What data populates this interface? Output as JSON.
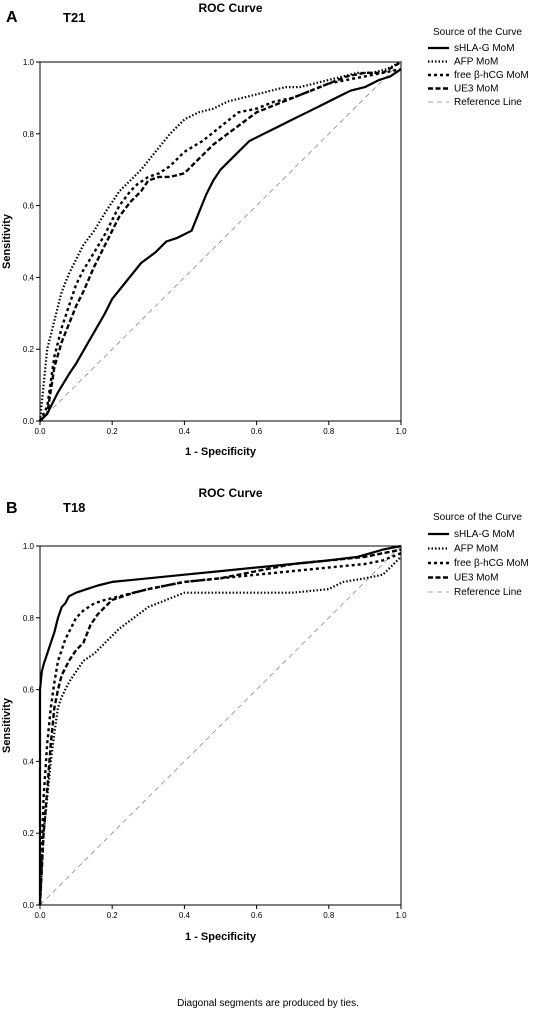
{
  "footnote": "Diagonal segments are produced by ties.",
  "chart_data": [
    {
      "type": "line",
      "panel": "A",
      "subtitle": "T21",
      "title": "ROC Curve",
      "xlabel": "1 - Specificity",
      "ylabel": "Sensitivity",
      "xlim": [
        0,
        1
      ],
      "ylim": [
        0,
        1
      ],
      "xticks": [
        "0.0",
        "0.2",
        "0.4",
        "0.6",
        "0.8",
        "1.0"
      ],
      "yticks": [
        "0.0",
        "0.2",
        "0.4",
        "0.6",
        "0.8",
        "1.0"
      ],
      "legend_title": "Source of the Curve",
      "legend_position": "top-right",
      "series": [
        {
          "name": "sHLA-G MoM",
          "style": "solid",
          "x": [
            0,
            0.02,
            0.05,
            0.08,
            0.1,
            0.14,
            0.18,
            0.2,
            0.24,
            0.28,
            0.32,
            0.35,
            0.38,
            0.42,
            0.44,
            0.46,
            0.48,
            0.5,
            0.54,
            0.58,
            0.62,
            0.66,
            0.7,
            0.74,
            0.78,
            0.82,
            0.86,
            0.9,
            0.94,
            0.97,
            1.0
          ],
          "y": [
            0,
            0.02,
            0.08,
            0.13,
            0.16,
            0.23,
            0.3,
            0.34,
            0.39,
            0.44,
            0.47,
            0.5,
            0.51,
            0.53,
            0.58,
            0.63,
            0.67,
            0.7,
            0.74,
            0.78,
            0.8,
            0.82,
            0.84,
            0.86,
            0.88,
            0.9,
            0.92,
            0.93,
            0.95,
            0.96,
            0.98
          ]
        },
        {
          "name": "AFP MoM",
          "style": "dotted",
          "x": [
            0,
            0.01,
            0.02,
            0.04,
            0.06,
            0.08,
            0.1,
            0.12,
            0.15,
            0.18,
            0.2,
            0.22,
            0.25,
            0.28,
            0.32,
            0.36,
            0.4,
            0.44,
            0.48,
            0.52,
            0.56,
            0.6,
            0.64,
            0.68,
            0.72,
            0.76,
            0.8,
            0.84,
            0.88,
            0.92,
            0.96,
            1.0
          ],
          "y": [
            0,
            0.1,
            0.2,
            0.28,
            0.36,
            0.41,
            0.45,
            0.49,
            0.53,
            0.58,
            0.61,
            0.64,
            0.67,
            0.7,
            0.75,
            0.8,
            0.84,
            0.86,
            0.87,
            0.89,
            0.9,
            0.91,
            0.92,
            0.93,
            0.93,
            0.94,
            0.95,
            0.96,
            0.97,
            0.97,
            0.98,
            1.0
          ]
        },
        {
          "name": "free β-hCG MoM",
          "style": "dashdot",
          "x": [
            0,
            0.02,
            0.04,
            0.06,
            0.08,
            0.1,
            0.12,
            0.15,
            0.18,
            0.2,
            0.22,
            0.25,
            0.27,
            0.3,
            0.33,
            0.36,
            0.4,
            0.45,
            0.5,
            0.55,
            0.6,
            0.65,
            0.7,
            0.75,
            0.8,
            0.85,
            0.9,
            0.95,
            1.0
          ],
          "y": [
            0,
            0.04,
            0.18,
            0.26,
            0.32,
            0.38,
            0.42,
            0.47,
            0.52,
            0.56,
            0.6,
            0.64,
            0.66,
            0.68,
            0.69,
            0.71,
            0.75,
            0.78,
            0.82,
            0.86,
            0.87,
            0.89,
            0.9,
            0.92,
            0.94,
            0.95,
            0.96,
            0.97,
            0.98
          ]
        },
        {
          "name": "UE3 MoM",
          "style": "dashed",
          "x": [
            0,
            0.02,
            0.04,
            0.06,
            0.08,
            0.1,
            0.12,
            0.15,
            0.18,
            0.2,
            0.22,
            0.25,
            0.28,
            0.3,
            0.33,
            0.36,
            0.4,
            0.44,
            0.48,
            0.52,
            0.56,
            0.6,
            0.65,
            0.7,
            0.75,
            0.8,
            0.85,
            0.9,
            0.95,
            1.0
          ],
          "y": [
            0,
            0.02,
            0.15,
            0.22,
            0.27,
            0.32,
            0.36,
            0.43,
            0.49,
            0.53,
            0.57,
            0.61,
            0.64,
            0.67,
            0.68,
            0.68,
            0.69,
            0.73,
            0.77,
            0.8,
            0.83,
            0.86,
            0.88,
            0.9,
            0.92,
            0.94,
            0.96,
            0.97,
            0.97,
            1.0
          ]
        },
        {
          "name": "Reference Line",
          "style": "reference",
          "x": [
            0,
            1
          ],
          "y": [
            0,
            1
          ]
        }
      ]
    },
    {
      "type": "line",
      "panel": "B",
      "subtitle": "T18",
      "title": "ROC Curve",
      "xlabel": "1 - Specificity",
      "ylabel": "Sensitivity",
      "xlim": [
        0,
        1
      ],
      "ylim": [
        0,
        1
      ],
      "xticks": [
        "0.0",
        "0.2",
        "0.4",
        "0.6",
        "0.8",
        "1.0"
      ],
      "yticks": [
        "0.0",
        "0.2",
        "0.4",
        "0.6",
        "0.8",
        "1.0"
      ],
      "legend_title": "Source of the Curve",
      "legend_position": "top-right",
      "series": [
        {
          "name": "sHLA-G MoM",
          "style": "solid",
          "x": [
            0,
            0,
            0.005,
            0.01,
            0.02,
            0.03,
            0.04,
            0.05,
            0.06,
            0.07,
            0.08,
            0.1,
            0.13,
            0.16,
            0.2,
            0.3,
            0.4,
            0.5,
            0.6,
            0.7,
            0.8,
            0.88,
            0.95,
            1.0
          ],
          "y": [
            0,
            0.6,
            0.65,
            0.67,
            0.7,
            0.73,
            0.76,
            0.8,
            0.83,
            0.84,
            0.86,
            0.87,
            0.88,
            0.89,
            0.9,
            0.91,
            0.92,
            0.93,
            0.94,
            0.95,
            0.96,
            0.97,
            0.99,
            1.0
          ]
        },
        {
          "name": "AFP MoM",
          "style": "dotted",
          "x": [
            0,
            0.01,
            0.02,
            0.03,
            0.04,
            0.05,
            0.06,
            0.08,
            0.1,
            0.12,
            0.15,
            0.18,
            0.22,
            0.26,
            0.3,
            0.35,
            0.4,
            0.5,
            0.6,
            0.7,
            0.8,
            0.84,
            0.9,
            0.95,
            1.0
          ],
          "y": [
            0,
            0.2,
            0.3,
            0.4,
            0.48,
            0.55,
            0.58,
            0.62,
            0.65,
            0.68,
            0.7,
            0.73,
            0.77,
            0.8,
            0.83,
            0.85,
            0.87,
            0.87,
            0.87,
            0.87,
            0.88,
            0.9,
            0.91,
            0.92,
            0.97
          ]
        },
        {
          "name": "free β-hCG MoM",
          "style": "dashdot",
          "x": [
            0,
            0.01,
            0.02,
            0.03,
            0.04,
            0.05,
            0.06,
            0.07,
            0.08,
            0.1,
            0.12,
            0.15,
            0.18,
            0.22,
            0.26,
            0.3,
            0.35,
            0.4,
            0.5,
            0.6,
            0.7,
            0.8,
            0.9,
            0.95,
            1.0
          ],
          "y": [
            0,
            0.3,
            0.45,
            0.55,
            0.62,
            0.68,
            0.71,
            0.74,
            0.76,
            0.8,
            0.82,
            0.84,
            0.85,
            0.86,
            0.87,
            0.88,
            0.89,
            0.9,
            0.91,
            0.92,
            0.93,
            0.94,
            0.95,
            0.96,
            0.98
          ]
        },
        {
          "name": "UE3 MoM",
          "style": "dashed",
          "x": [
            0,
            0.01,
            0.02,
            0.03,
            0.04,
            0.05,
            0.06,
            0.08,
            0.1,
            0.12,
            0.14,
            0.16,
            0.18,
            0.2,
            0.23,
            0.26,
            0.3,
            0.35,
            0.4,
            0.5,
            0.6,
            0.7,
            0.8,
            0.9,
            0.95,
            1.0
          ],
          "y": [
            0,
            0.2,
            0.32,
            0.45,
            0.55,
            0.6,
            0.64,
            0.68,
            0.71,
            0.73,
            0.78,
            0.81,
            0.83,
            0.85,
            0.86,
            0.87,
            0.88,
            0.89,
            0.9,
            0.91,
            0.93,
            0.95,
            0.96,
            0.97,
            0.98,
            0.99
          ]
        },
        {
          "name": "Reference Line",
          "style": "reference",
          "x": [
            0,
            1
          ],
          "y": [
            0,
            1
          ]
        }
      ]
    }
  ]
}
